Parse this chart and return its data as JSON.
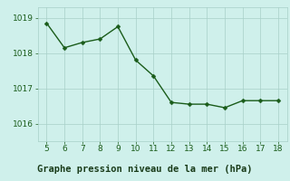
{
  "x": [
    5,
    6,
    7,
    8,
    9,
    10,
    11,
    12,
    13,
    14,
    15,
    16,
    17,
    18
  ],
  "y": [
    1018.85,
    1018.15,
    1018.3,
    1018.4,
    1018.75,
    1017.8,
    1017.35,
    1016.6,
    1016.55,
    1016.55,
    1016.45,
    1016.65,
    1016.65,
    1016.65
  ],
  "line_color": "#1a5c1a",
  "marker_color": "#1a5c1a",
  "bg_color": "#cff0eb",
  "plot_bg_color": "#cff0eb",
  "grid_color": "#a8cfc8",
  "xlabel": "Graphe pression niveau de la mer (hPa)",
  "xlabel_color": "#1a5c1a",
  "xlabel_bg": "#4da870",
  "ylim": [
    1015.5,
    1019.3
  ],
  "xlim": [
    4.5,
    18.5
  ],
  "yticks": [
    1016,
    1017,
    1018,
    1019
  ],
  "xticks": [
    5,
    6,
    7,
    8,
    9,
    10,
    11,
    12,
    13,
    14,
    15,
    16,
    17,
    18
  ],
  "tick_color": "#1a5c1a",
  "tick_fontsize": 6.5,
  "xlabel_fontsize": 7.5,
  "linewidth": 1.0,
  "markersize": 2.5
}
